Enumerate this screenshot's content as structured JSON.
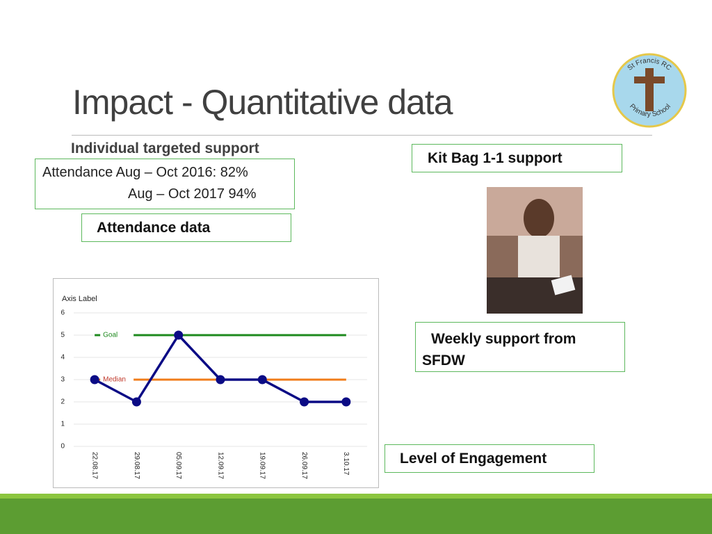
{
  "title": "Impact - Quantitative data",
  "subtitle": "Individual targeted support",
  "attendance": {
    "line1": "Attendance Aug – Oct 2016: 82%",
    "line2": "Aug – Oct 2017   94%"
  },
  "boxes": {
    "attendance_data": "Attendance data",
    "kit_bag": "Kit Bag 1-1 support",
    "weekly": "Weekly support from SFDW",
    "engagement": "Level of Engagement"
  },
  "logo": {
    "top": "St Francis RC",
    "bottom": "Primary School"
  },
  "chart_data": {
    "type": "line",
    "y_label": "Axis Label",
    "categories": [
      "22.08.17",
      "29.08.17",
      "05.09.17",
      "12.09.17",
      "19.09.17",
      "26.09.17",
      "3.10.17"
    ],
    "values": [
      3,
      2,
      5,
      3,
      3,
      2,
      2
    ],
    "color": "#0b0b85",
    "reference_lines": [
      {
        "name": "Goal",
        "value": 5,
        "color": "#1e8a1e"
      },
      {
        "name": "Median",
        "value": 3,
        "color": "#f07c1a"
      }
    ],
    "ylim": [
      0,
      6
    ],
    "yticks": [
      0,
      1,
      2,
      3,
      4,
      5,
      6
    ],
    "grid": true
  }
}
